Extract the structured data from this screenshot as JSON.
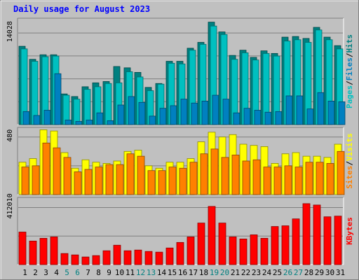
{
  "chart_data": {
    "type": "bar",
    "title": "Daily usage for August 2023",
    "categories": [
      "1",
      "2",
      "3",
      "4",
      "5",
      "6",
      "7",
      "8",
      "9",
      "10",
      "11",
      "12",
      "13",
      "14",
      "15",
      "16",
      "17",
      "18",
      "19",
      "20",
      "21",
      "22",
      "23",
      "24",
      "25",
      "26",
      "27",
      "28",
      "29",
      "30",
      "31"
    ],
    "weekend_days": [
      "5",
      "6",
      "12",
      "13",
      "19",
      "20",
      "26",
      "27"
    ],
    "panels": [
      {
        "id": "hits",
        "label_parts": [
          "Pages",
          "Files",
          "Hits"
        ],
        "label_colors": [
          "#00c0c0",
          "#0080c0",
          "#008080"
        ],
        "tick_label": "14028",
        "ylim": [
          0,
          16300
        ],
        "series": [
          {
            "name": "Hits",
            "color": "#008080",
            "values": [
              12000,
              10000,
              10700,
              10700,
              4700,
              4300,
              5800,
              6400,
              6600,
              8900,
              8700,
              8000,
              5700,
              6300,
              9700,
              9700,
              11700,
              12600,
              15700,
              14200,
              10600,
              11400,
              10300,
              11300,
              10900,
              13400,
              13500,
              13200,
              14900,
              13400,
              12100
            ]
          },
          {
            "name": "Files",
            "color": "#00c0c0",
            "values": [
              11600,
              9700,
              10400,
              10500,
              4500,
              3900,
              5400,
              5800,
              6300,
              6400,
              8100,
              7300,
              5200,
              6200,
              9400,
              9300,
              11400,
              12300,
              15100,
              13800,
              10000,
              11000,
              9900,
              10900,
              10500,
              12800,
              13000,
              12600,
              14500,
              13000,
              11600
            ]
          },
          {
            "name": "Pages",
            "color": "#0080c0",
            "values": [
              2000,
              1400,
              2200,
              7800,
              700,
              500,
              700,
              1800,
              600,
              3000,
              4300,
              3400,
              1300,
              2500,
              2900,
              3900,
              3300,
              3600,
              4500,
              3900,
              1800,
              2500,
              2200,
              1900,
              2000,
              4400,
              4400,
              2400,
              4900,
              3600,
              3500
            ]
          }
        ]
      },
      {
        "id": "visits",
        "label_parts": [
          "Sites",
          "Visits"
        ],
        "label_colors": [
          "#ff8000",
          "#ffff00"
        ],
        "tick_label": "480",
        "ylim": [
          0,
          560
        ],
        "series": [
          {
            "name": "Visits",
            "color": "#ffff00",
            "values": [
              270,
              300,
              540,
              530,
              350,
              220,
              290,
              270,
              260,
              280,
              360,
              370,
              240,
              220,
              270,
              270,
              300,
              440,
              520,
              480,
              500,
              420,
              410,
              400,
              260,
              340,
              350,
              320,
              320,
              310,
              420
            ]
          },
          {
            "name": "Sites",
            "color": "#ff8000",
            "values": [
              230,
              240,
              430,
              390,
              310,
              190,
              210,
              230,
              250,
              250,
              340,
              320,
              200,
              200,
              230,
              220,
              270,
              340,
              380,
              310,
              330,
              280,
              290,
              230,
              230,
              240,
              230,
              270,
              270,
              260,
              360
            ]
          }
        ]
      },
      {
        "id": "kbytes",
        "label_parts": [
          "KBytes"
        ],
        "label_colors": [
          "#ff0000"
        ],
        "tick_label": "412010",
        "ylim": [
          0,
          485000
        ],
        "series": [
          {
            "name": "KBytes",
            "color": "#ff0000",
            "values": [
              235000,
              170000,
              190000,
              200000,
              80000,
              70000,
              55000,
              65000,
              100000,
              140000,
              100000,
              105000,
              95000,
              90000,
              120000,
              160000,
              200000,
              300000,
              420000,
              300000,
              200000,
              185000,
              215000,
              190000,
              275000,
              280000,
              330000,
              440000,
              430000,
              345000,
              350000
            ]
          }
        ]
      }
    ]
  }
}
